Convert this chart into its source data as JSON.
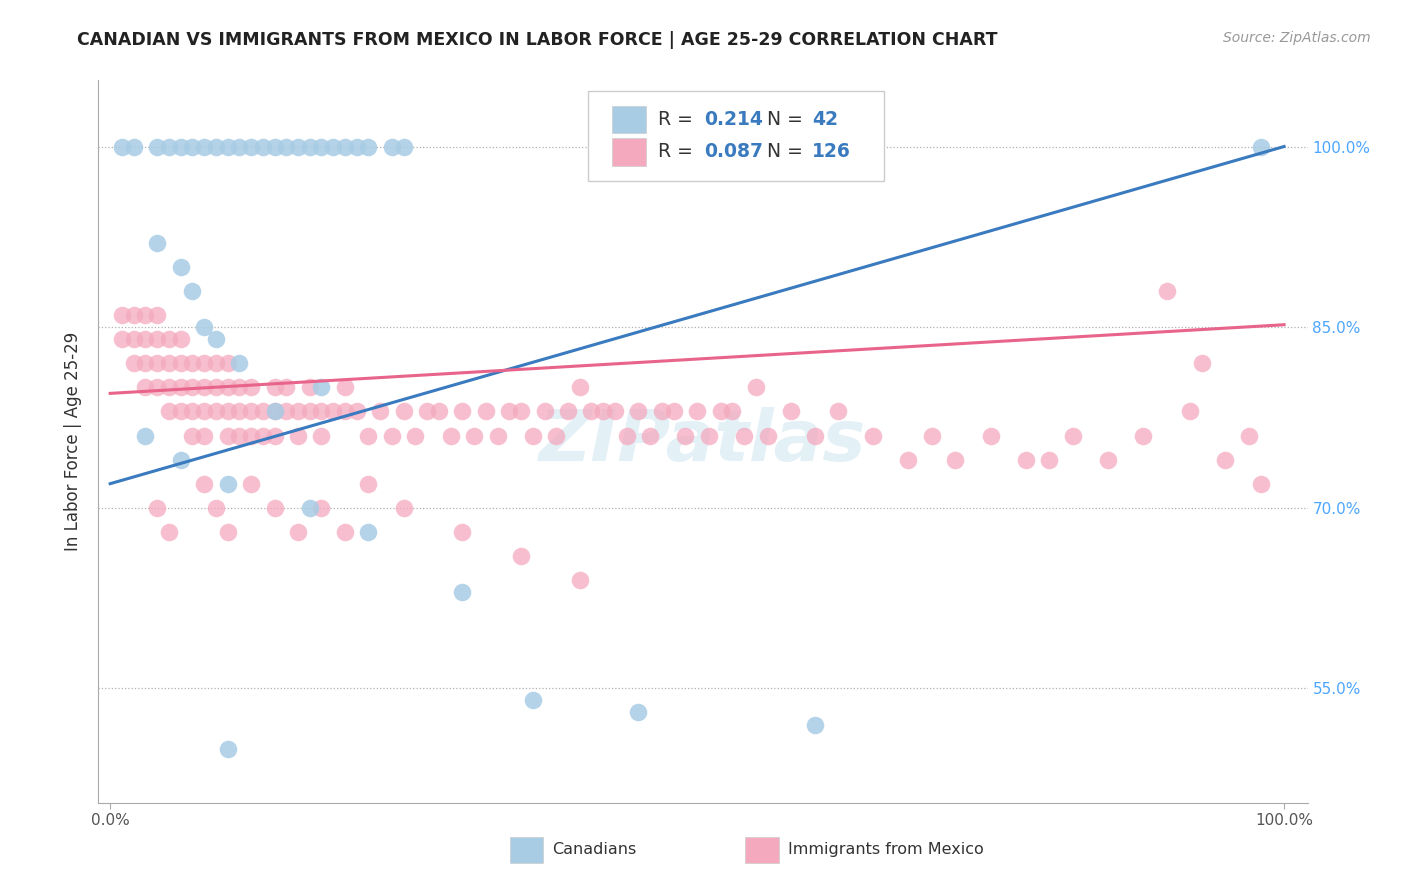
{
  "title": "CANADIAN VS IMMIGRANTS FROM MEXICO IN LABOR FORCE | AGE 25-29 CORRELATION CHART",
  "source": "Source: ZipAtlas.com",
  "ylabel": "In Labor Force | Age 25-29",
  "canadian_R": 0.214,
  "canadian_N": 42,
  "mexican_R": 0.087,
  "mexican_N": 126,
  "blue_color": "#a8cce4",
  "pink_color": "#f4a9be",
  "blue_line_color": "#3a7abf",
  "pink_line_color": "#e8648a",
  "blue_trend": [
    0.0,
    0.72,
    1.0,
    1.0
  ],
  "pink_trend": [
    0.0,
    0.795,
    1.0,
    0.852
  ],
  "ytick_vals": [
    0.55,
    0.7,
    0.85,
    1.0
  ],
  "ytick_labels": [
    "55.0%",
    "70.0%",
    "85.0%",
    "100.0%"
  ],
  "xlim": [
    -0.01,
    1.02
  ],
  "ylim": [
    0.455,
    1.055
  ],
  "canadians_x": [
    0.01,
    0.02,
    0.04,
    0.05,
    0.06,
    0.07,
    0.08,
    0.09,
    0.1,
    0.11,
    0.12,
    0.13,
    0.14,
    0.15,
    0.16,
    0.17,
    0.18,
    0.19,
    0.2,
    0.21,
    0.22,
    0.24,
    0.25,
    0.04,
    0.06,
    0.07,
    0.08,
    0.09,
    0.11,
    0.14,
    0.03,
    0.06,
    0.1,
    0.17,
    0.22,
    0.3,
    0.36,
    0.45,
    0.6,
    0.1,
    0.18,
    0.98
  ],
  "canadians_y": [
    1.0,
    1.0,
    1.0,
    1.0,
    1.0,
    1.0,
    1.0,
    1.0,
    1.0,
    1.0,
    1.0,
    1.0,
    1.0,
    1.0,
    1.0,
    1.0,
    1.0,
    1.0,
    1.0,
    1.0,
    1.0,
    1.0,
    1.0,
    0.92,
    0.9,
    0.88,
    0.85,
    0.84,
    0.82,
    0.78,
    0.76,
    0.74,
    0.72,
    0.7,
    0.68,
    0.63,
    0.54,
    0.53,
    0.52,
    0.5,
    0.8,
    1.0
  ],
  "mexicans_x": [
    0.01,
    0.01,
    0.02,
    0.02,
    0.02,
    0.03,
    0.03,
    0.03,
    0.03,
    0.04,
    0.04,
    0.04,
    0.04,
    0.05,
    0.05,
    0.05,
    0.05,
    0.06,
    0.06,
    0.06,
    0.06,
    0.07,
    0.07,
    0.07,
    0.08,
    0.08,
    0.08,
    0.08,
    0.09,
    0.09,
    0.09,
    0.1,
    0.1,
    0.1,
    0.1,
    0.11,
    0.11,
    0.11,
    0.12,
    0.12,
    0.12,
    0.13,
    0.13,
    0.14,
    0.14,
    0.14,
    0.15,
    0.15,
    0.16,
    0.16,
    0.17,
    0.17,
    0.18,
    0.18,
    0.19,
    0.2,
    0.2,
    0.21,
    0.22,
    0.23,
    0.24,
    0.25,
    0.26,
    0.27,
    0.28,
    0.29,
    0.3,
    0.31,
    0.32,
    0.33,
    0.34,
    0.35,
    0.36,
    0.37,
    0.38,
    0.39,
    0.4,
    0.41,
    0.42,
    0.43,
    0.44,
    0.45,
    0.46,
    0.47,
    0.48,
    0.49,
    0.5,
    0.51,
    0.52,
    0.53,
    0.54,
    0.55,
    0.56,
    0.58,
    0.6,
    0.62,
    0.65,
    0.68,
    0.7,
    0.72,
    0.75,
    0.78,
    0.8,
    0.82,
    0.85,
    0.88,
    0.9,
    0.92,
    0.93,
    0.95,
    0.97,
    0.98,
    0.04,
    0.05,
    0.07,
    0.08,
    0.09,
    0.1,
    0.12,
    0.14,
    0.16,
    0.18,
    0.2,
    0.22,
    0.25,
    0.3,
    0.35,
    0.4
  ],
  "mexicans_y": [
    0.84,
    0.86,
    0.82,
    0.84,
    0.86,
    0.8,
    0.82,
    0.84,
    0.86,
    0.8,
    0.82,
    0.84,
    0.86,
    0.8,
    0.82,
    0.84,
    0.78,
    0.8,
    0.82,
    0.84,
    0.78,
    0.8,
    0.82,
    0.78,
    0.8,
    0.82,
    0.78,
    0.76,
    0.8,
    0.82,
    0.78,
    0.8,
    0.82,
    0.78,
    0.76,
    0.8,
    0.78,
    0.76,
    0.8,
    0.78,
    0.76,
    0.78,
    0.76,
    0.8,
    0.78,
    0.76,
    0.8,
    0.78,
    0.78,
    0.76,
    0.8,
    0.78,
    0.78,
    0.76,
    0.78,
    0.8,
    0.78,
    0.78,
    0.76,
    0.78,
    0.76,
    0.78,
    0.76,
    0.78,
    0.78,
    0.76,
    0.78,
    0.76,
    0.78,
    0.76,
    0.78,
    0.78,
    0.76,
    0.78,
    0.76,
    0.78,
    0.8,
    0.78,
    0.78,
    0.78,
    0.76,
    0.78,
    0.76,
    0.78,
    0.78,
    0.76,
    0.78,
    0.76,
    0.78,
    0.78,
    0.76,
    0.8,
    0.76,
    0.78,
    0.76,
    0.78,
    0.76,
    0.74,
    0.76,
    0.74,
    0.76,
    0.74,
    0.74,
    0.76,
    0.74,
    0.76,
    0.88,
    0.78,
    0.82,
    0.74,
    0.76,
    0.72,
    0.7,
    0.68,
    0.76,
    0.72,
    0.7,
    0.68,
    0.72,
    0.7,
    0.68,
    0.7,
    0.68,
    0.72,
    0.7,
    0.68,
    0.66,
    0.64
  ]
}
